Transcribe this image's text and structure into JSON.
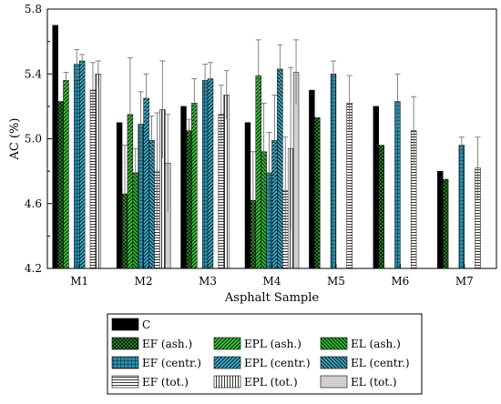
{
  "chart_data": {
    "type": "bar",
    "xlabel": "Asphalt Sample",
    "ylabel": "AC (%)",
    "ylim": [
      4.2,
      5.8
    ],
    "yticks": [
      "4.2",
      "4.6",
      "5.0",
      "5.4",
      "5.8"
    ],
    "categories": [
      "M1",
      "M2",
      "M3",
      "M4",
      "M5",
      "M6",
      "M7"
    ],
    "series": [
      {
        "name": "C",
        "pattern": "solid",
        "color": "#000000",
        "values": [
          5.7,
          5.1,
          5.2,
          5.1,
          5.3,
          5.2,
          4.8
        ],
        "errors": [
          0,
          0,
          0,
          0,
          0,
          0,
          0
        ]
      },
      {
        "name": "EF (ash.)",
        "pattern": "crosshatch",
        "color": "#2e9e2e",
        "values": [
          5.23,
          4.66,
          5.05,
          4.62,
          5.13,
          4.96,
          4.75
        ],
        "errors": [
          0,
          0.3,
          0.07,
          0.3,
          0,
          0,
          0
        ]
      },
      {
        "name": "EPL (ash.)",
        "pattern": "hatch-up",
        "color": "#3dc43d",
        "values": [
          5.36,
          5.15,
          5.22,
          5.39,
          null,
          null,
          null
        ],
        "errors": [
          0.05,
          0.35,
          0.15,
          0.22,
          0,
          0,
          0
        ]
      },
      {
        "name": "EL (ash.)",
        "pattern": "hatch-down",
        "color": "#2fb82f",
        "values": [
          null,
          4.79,
          null,
          4.92,
          null,
          null,
          null
        ],
        "errors": [
          0,
          0.15,
          0,
          0.3,
          0,
          0,
          0
        ]
      },
      {
        "name": "EF (centr.)",
        "pattern": "grid",
        "color": "#2a8fae",
        "values": [
          5.46,
          5.09,
          5.36,
          4.79,
          5.4,
          5.23,
          4.96
        ],
        "errors": [
          0.09,
          0.2,
          0.1,
          0.25,
          0.08,
          0.17,
          0.05
        ]
      },
      {
        "name": "EPL (centr.)",
        "pattern": "hatch-up",
        "color": "#3ab0cf",
        "values": [
          5.48,
          5.25,
          5.37,
          4.99,
          null,
          null,
          null
        ],
        "errors": [
          0.04,
          0.15,
          0.1,
          0.28,
          0,
          0,
          0
        ]
      },
      {
        "name": "EL (centr.)",
        "pattern": "hatch-down",
        "color": "#3aa6c4",
        "values": [
          null,
          4.99,
          null,
          5.43,
          null,
          null,
          null
        ],
        "errors": [
          0,
          0.15,
          0,
          0.15,
          0,
          0,
          0
        ]
      },
      {
        "name": "EF (tot.)",
        "pattern": "horizontal",
        "color": "#ffffff",
        "values": [
          5.3,
          4.8,
          5.15,
          4.68,
          5.22,
          5.05,
          4.82
        ],
        "errors": [
          0.17,
          0.36,
          0.18,
          0.33,
          0.17,
          0.21,
          0.19
        ]
      },
      {
        "name": "EPL (tot.)",
        "pattern": "vertical",
        "color": "#ffffff",
        "values": [
          5.4,
          5.18,
          5.27,
          4.94,
          null,
          null,
          null
        ],
        "errors": [
          0.08,
          0.3,
          0.15,
          0.5,
          0,
          0,
          0
        ]
      },
      {
        "name": "EL (tot.)",
        "pattern": "solid",
        "color": "#d0d0d0",
        "values": [
          null,
          4.85,
          null,
          5.41,
          null,
          null,
          null
        ],
        "errors": [
          0,
          0.3,
          0,
          0.2,
          0,
          0,
          0
        ]
      }
    ],
    "legend": {
      "placement": "bottom",
      "rows": [
        [
          "C"
        ],
        [
          "EF (ash.)",
          "EPL (ash.)",
          "EL (ash.)"
        ],
        [
          "EF (centr.)",
          "EPL (centr.)",
          "EL (centr.)"
        ],
        [
          "EF (tot.)",
          "EPL (tot.)",
          "EL (tot.)"
        ]
      ]
    },
    "grid": false
  }
}
